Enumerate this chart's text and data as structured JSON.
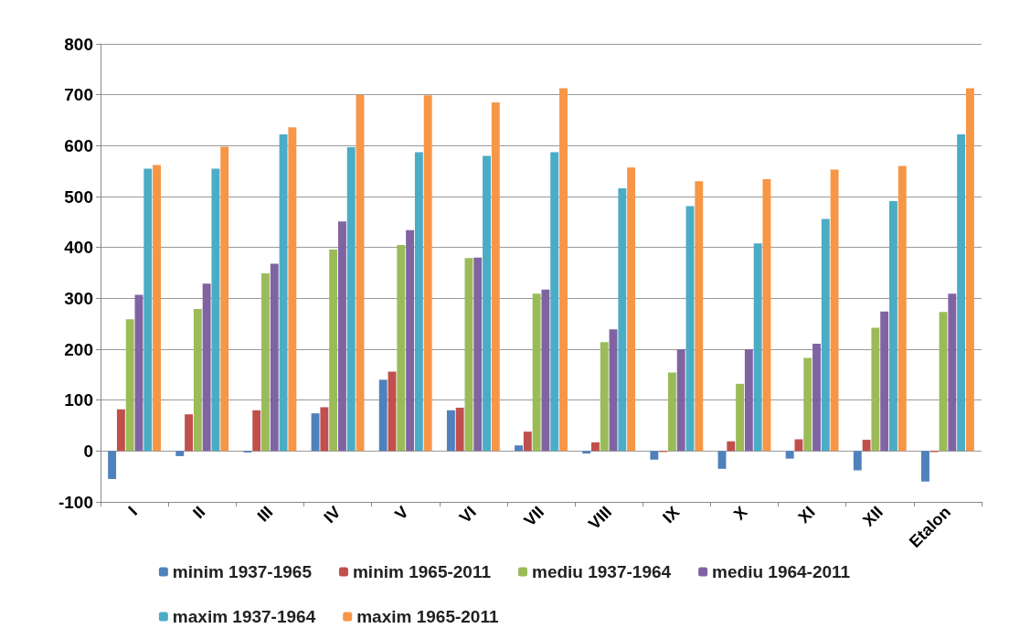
{
  "chart_data": {
    "type": "bar",
    "categories": [
      "I",
      "II",
      "III",
      "IV",
      "V",
      "VI",
      "VII",
      "VIII",
      "IX",
      "X",
      "XI",
      "XII",
      "Etalon"
    ],
    "series": [
      {
        "name": "minim 1937-1965",
        "color": "#4f81bd",
        "values": [
          -55,
          -10,
          -3,
          74,
          140,
          80,
          11,
          -5,
          -17,
          -35,
          -15,
          -38,
          -60
        ]
      },
      {
        "name": "minim 1965-2011",
        "color": "#c0504d",
        "values": [
          82,
          72,
          80,
          86,
          156,
          85,
          38,
          17,
          -2,
          19,
          23,
          22,
          -2
        ]
      },
      {
        "name": "mediu 1937-1964",
        "color": "#9bbb59",
        "values": [
          259,
          279,
          349,
          396,
          405,
          379,
          309,
          214,
          154,
          132,
          183,
          242,
          273
        ]
      },
      {
        "name": "mediu 1964-2011",
        "color": "#8064a2",
        "values": [
          307,
          329,
          368,
          451,
          434,
          380,
          317,
          239,
          200,
          200,
          211,
          274,
          309
        ]
      },
      {
        "name": "maxim 1937-1964",
        "color": "#4bacc6",
        "values": [
          555,
          555,
          622,
          597,
          587,
          580,
          587,
          516,
          481,
          408,
          456,
          491,
          622
        ]
      },
      {
        "name": "maxim 1965-2011",
        "color": "#f79646",
        "values": [
          562,
          598,
          636,
          700,
          699,
          685,
          713,
          557,
          530,
          534,
          553,
          560,
          713
        ]
      }
    ],
    "ylim": [
      -100,
      800
    ],
    "yticks": [
      -100,
      0,
      100,
      200,
      300,
      400,
      500,
      600,
      700,
      800
    ],
    "grid": "y",
    "legend": "bottom"
  }
}
